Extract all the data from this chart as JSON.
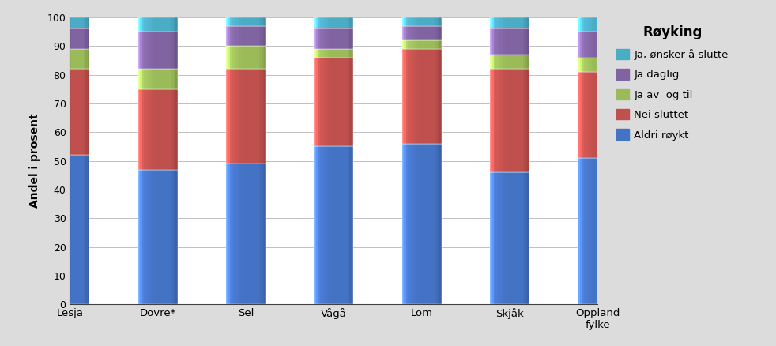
{
  "categories": [
    "Lesja",
    "Dovre*",
    "Sel",
    "Vågå",
    "Lom",
    "Skjåk",
    "Oppland\nfylke"
  ],
  "series": {
    "Aldri røykt": [
      52,
      47,
      49,
      55,
      56,
      46,
      51
    ],
    "Nei sluttet": [
      30,
      28,
      33,
      31,
      33,
      36,
      30
    ],
    "Ja av  og til": [
      7,
      7,
      8,
      3,
      3,
      5,
      5
    ],
    "Ja daglig": [
      7,
      13,
      7,
      7,
      5,
      9,
      9
    ],
    "Ja, ønsker å slutte": [
      4,
      5,
      3,
      4,
      3,
      4,
      5
    ]
  },
  "colors": {
    "Aldri røykt": "#4472C4",
    "Nei sluttet": "#C0504D",
    "Ja av  og til": "#9BBB59",
    "Ja daglig": "#8064A2",
    "Ja, ønsker å slutte": "#4BACC6"
  },
  "title": "Røyking",
  "ylabel": "Andel i prosent",
  "ylim": [
    0,
    100
  ],
  "yticks": [
    0,
    10,
    20,
    30,
    40,
    50,
    60,
    70,
    80,
    90,
    100
  ],
  "legend_order": [
    "Ja, ønsker å slutte",
    "Ja daglig",
    "Ja av  og til",
    "Nei sluttet",
    "Aldri røykt"
  ],
  "series_order": [
    "Aldri røykt",
    "Nei sluttet",
    "Ja av  og til",
    "Ja daglig",
    "Ja, ønsker å slutte"
  ],
  "bg_color": "#DCDCDC",
  "plot_bg_color": "#FFFFFF",
  "bar_width": 0.45,
  "figsize": [
    9.82,
    4.38
  ],
  "dpi": 100
}
